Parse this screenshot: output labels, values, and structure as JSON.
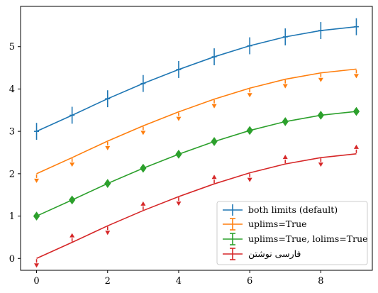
{
  "chart_data": {
    "type": "line",
    "title": "",
    "xlabel": "",
    "ylabel": "",
    "xlim": [
      -0.45,
      9.45
    ],
    "ylim": [
      -0.28,
      5.95
    ],
    "xticks": [
      "0",
      "2",
      "4",
      "6",
      "8"
    ],
    "yticks": [
      "0",
      "1",
      "2",
      "3",
      "4",
      "5"
    ],
    "grid": false,
    "legend_position": "lower-right",
    "x": [
      0,
      1,
      2,
      3,
      4,
      5,
      6,
      7,
      8,
      9
    ],
    "series": [
      {
        "name": "both limits (default)",
        "color": "#1f77b4",
        "y": [
          3.0,
          3.38,
          3.77,
          4.13,
          4.46,
          4.76,
          5.02,
          5.23,
          5.38,
          5.47
        ],
        "errorbar": "both"
      },
      {
        "name": "uplims=True",
        "color": "#ff7f0e",
        "y": [
          2.0,
          2.38,
          2.77,
          3.13,
          3.46,
          3.76,
          4.02,
          4.23,
          4.38,
          4.47
        ],
        "marker_y": [
          1.9,
          2.28,
          2.67,
          3.03,
          3.36,
          3.66,
          3.92,
          4.13,
          4.28,
          4.37
        ],
        "errorbar": "uplims"
      },
      {
        "name": "uplims=True, lolims=True",
        "color": "#2ca02c",
        "y": [
          1.0,
          1.38,
          1.77,
          2.13,
          2.46,
          2.76,
          3.02,
          3.23,
          3.38,
          3.47
        ],
        "errorbar": "both-limits"
      },
      {
        "name": "فارسی نوشتن",
        "color": "#d62728",
        "y": [
          0.0,
          0.38,
          0.77,
          1.13,
          1.46,
          1.76,
          2.02,
          2.23,
          2.38,
          2.47
        ],
        "marker_y": [
          -0.1,
          0.48,
          0.67,
          1.23,
          1.36,
          1.86,
          1.92,
          2.33,
          2.28,
          2.57
        ],
        "marker_dir": [
          "down",
          "up",
          "down",
          "up",
          "down",
          "up",
          "down",
          "up",
          "down",
          "up"
        ],
        "errorbar": "mixed"
      }
    ]
  }
}
